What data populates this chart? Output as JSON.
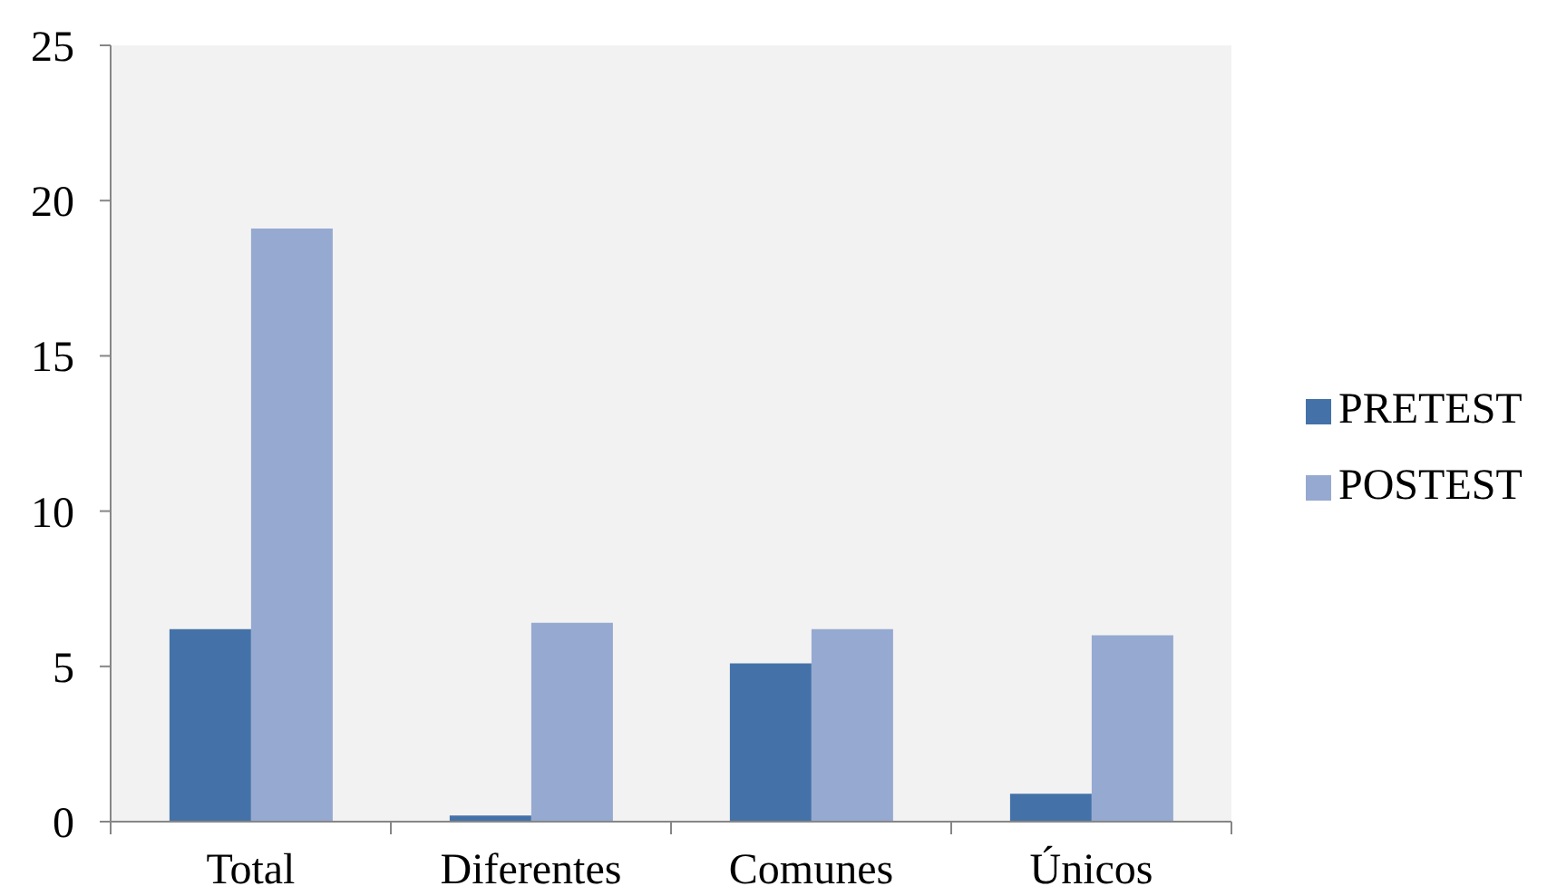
{
  "chart_data": {
    "type": "bar",
    "categories": [
      "Total",
      "Diferentes",
      "Comunes",
      "Únicos"
    ],
    "series": [
      {
        "name": "PRETEST",
        "color": "#4472a8",
        "values": [
          6.2,
          0.2,
          5.1,
          0.9
        ]
      },
      {
        "name": "POSTEST",
        "color": "#95a9d1",
        "values": [
          19.1,
          6.4,
          6.2,
          6.0
        ]
      }
    ],
    "ylim": [
      0,
      25
    ],
    "yticks": [
      0,
      5,
      10,
      15,
      20,
      25
    ],
    "legend": "right"
  }
}
